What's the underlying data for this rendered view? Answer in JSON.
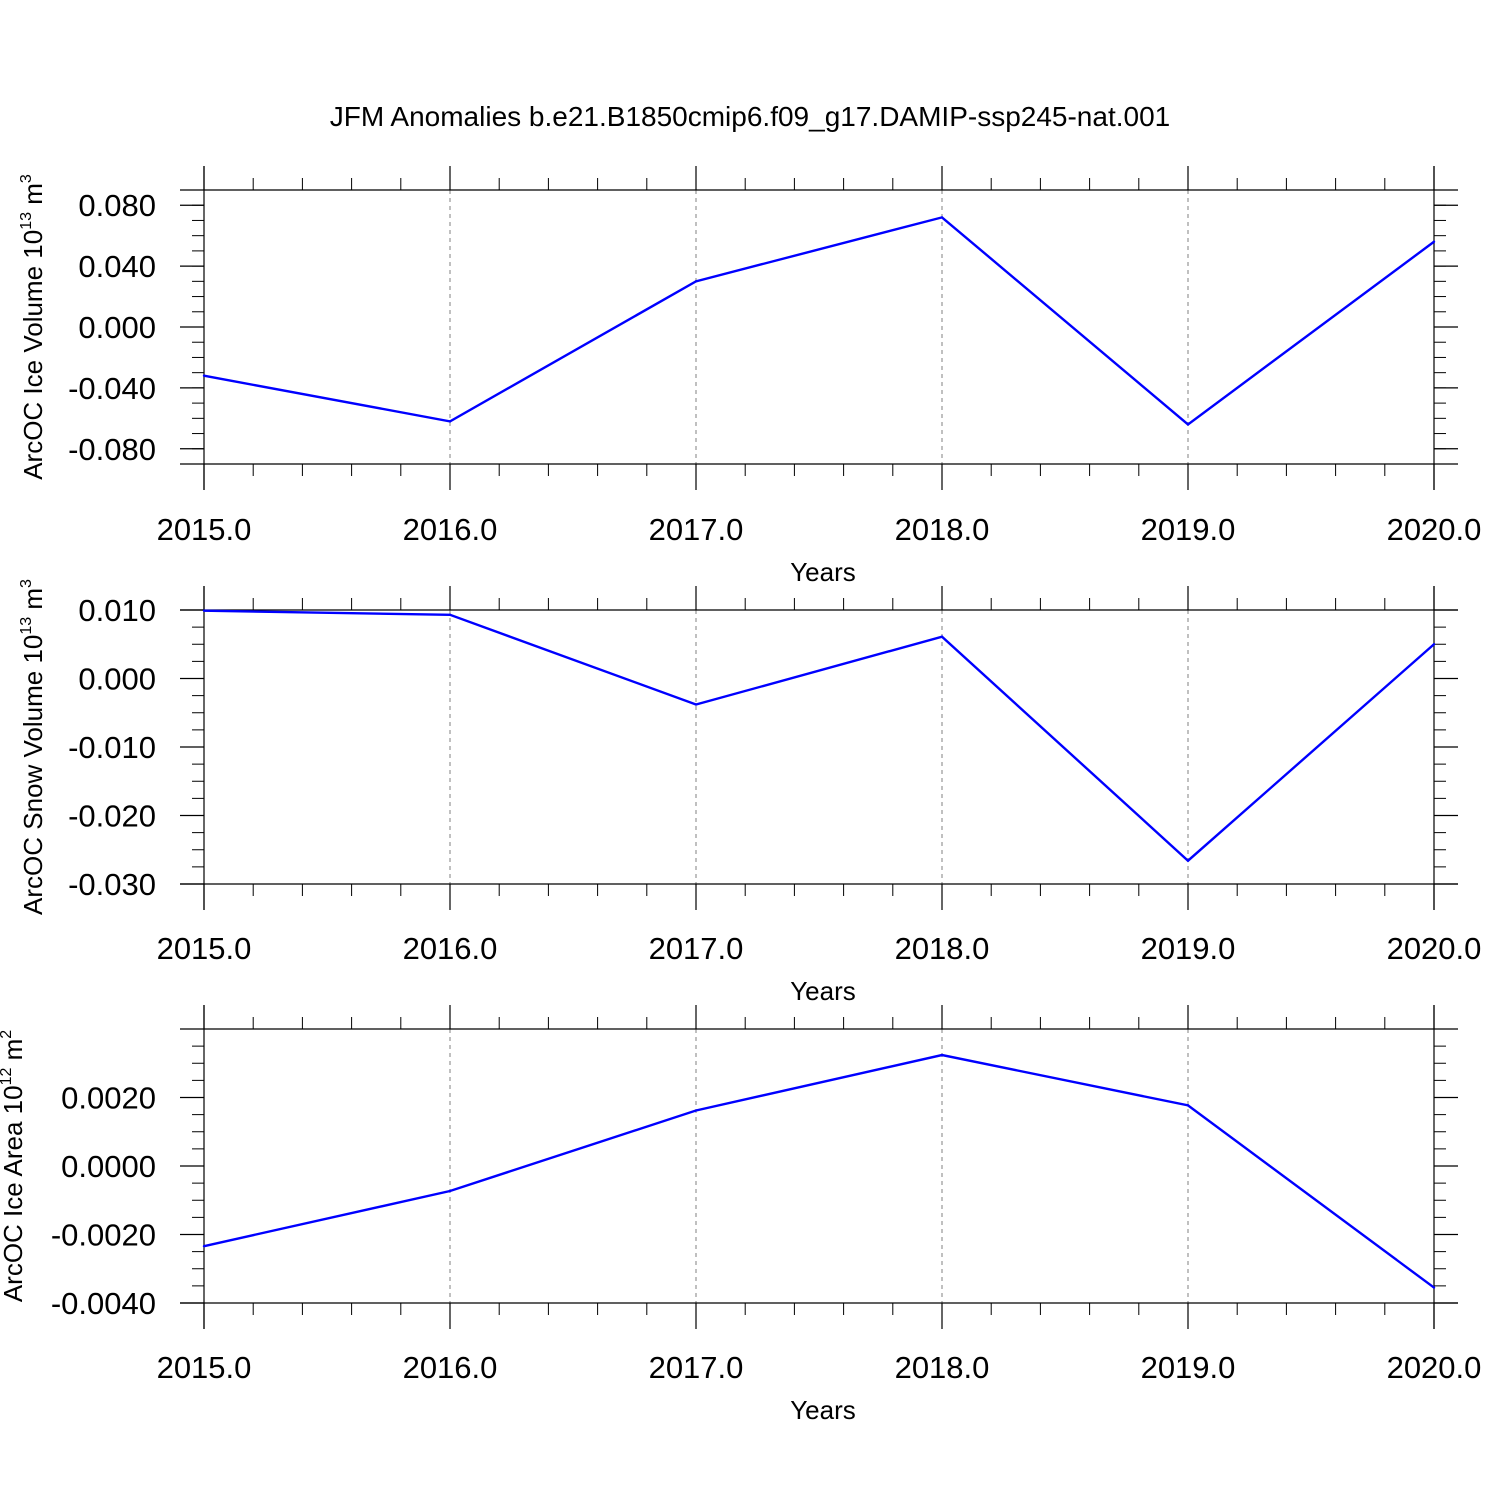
{
  "title": "JFM Anomalies b.e21.B1850cmip6.f09_g17.DAMIP-ssp245-nat.001",
  "colors": {
    "line": "#0000ff",
    "axis": "#000000",
    "grid": "#808080",
    "background": "#ffffff"
  },
  "chart_data": [
    {
      "type": "line",
      "ylabel": {
        "text": "ArcOC Ice Volume 10",
        "exp": "13",
        "unit": " m",
        "unit_exp": "3"
      },
      "xlabel": "Years",
      "x": [
        2015,
        2016,
        2017,
        2018,
        2019,
        2020
      ],
      "series": [
        {
          "values": [
            -0.032,
            -0.062,
            0.03,
            0.072,
            -0.064,
            0.056
          ]
        }
      ],
      "xlim": [
        2015,
        2020
      ],
      "ylim": [
        -0.09,
        0.09
      ],
      "xticks": [
        2015,
        2016,
        2017,
        2018,
        2019,
        2020
      ],
      "xtick_labels": [
        "2015.0",
        "2016.0",
        "2017.0",
        "2018.0",
        "2019.0",
        "2020.0"
      ],
      "yticks": [
        -0.08,
        -0.04,
        0.0,
        0.04,
        0.08
      ],
      "ytick_labels": [
        "-0.080",
        "-0.040",
        "0.000",
        "0.040",
        "0.080"
      ],
      "yminor_step": 0.01,
      "grid": "vertical-dashed"
    },
    {
      "type": "line",
      "ylabel": {
        "text": "ArcOC Snow Volume 10",
        "exp": "13",
        "unit": " m",
        "unit_exp": "3"
      },
      "xlabel": "Years",
      "x": [
        2015,
        2016,
        2017,
        2018,
        2019,
        2020
      ],
      "series": [
        {
          "values": [
            0.0099,
            0.0093,
            -0.0038,
            0.0061,
            -0.0266,
            0.005
          ]
        }
      ],
      "xlim": [
        2015,
        2020
      ],
      "ylim": [
        -0.03,
        0.01
      ],
      "xticks": [
        2015,
        2016,
        2017,
        2018,
        2019,
        2020
      ],
      "xtick_labels": [
        "2015.0",
        "2016.0",
        "2017.0",
        "2018.0",
        "2019.0",
        "2020.0"
      ],
      "yticks": [
        -0.03,
        -0.02,
        -0.01,
        0.0,
        0.01
      ],
      "ytick_labels": [
        "-0.030",
        "-0.020",
        "-0.010",
        "0.000",
        "0.010"
      ],
      "yminor_step": 0.0025,
      "grid": "vertical-dashed"
    },
    {
      "type": "line",
      "ylabel": {
        "text": "ArcOC Ice Area 10",
        "exp": "12",
        "unit": " m",
        "unit_exp": "2"
      },
      "xlabel": "Years",
      "x": [
        2015,
        2016,
        2017,
        2018,
        2019,
        2020
      ],
      "series": [
        {
          "values": [
            -0.00234,
            -0.00073,
            0.00162,
            0.00324,
            0.00177,
            -0.00355
          ]
        }
      ],
      "xlim": [
        2015,
        2020
      ],
      "ylim": [
        -0.004,
        0.004
      ],
      "xticks": [
        2015,
        2016,
        2017,
        2018,
        2019,
        2020
      ],
      "xtick_labels": [
        "2015.0",
        "2016.0",
        "2017.0",
        "2018.0",
        "2019.0",
        "2020.0"
      ],
      "yticks": [
        -0.004,
        -0.002,
        0.0,
        0.002
      ],
      "ytick_labels": [
        "-0.0040",
        "-0.0020",
        "0.0000",
        "0.0020"
      ],
      "yminor_step": 0.0005,
      "grid": "vertical-dashed"
    }
  ]
}
